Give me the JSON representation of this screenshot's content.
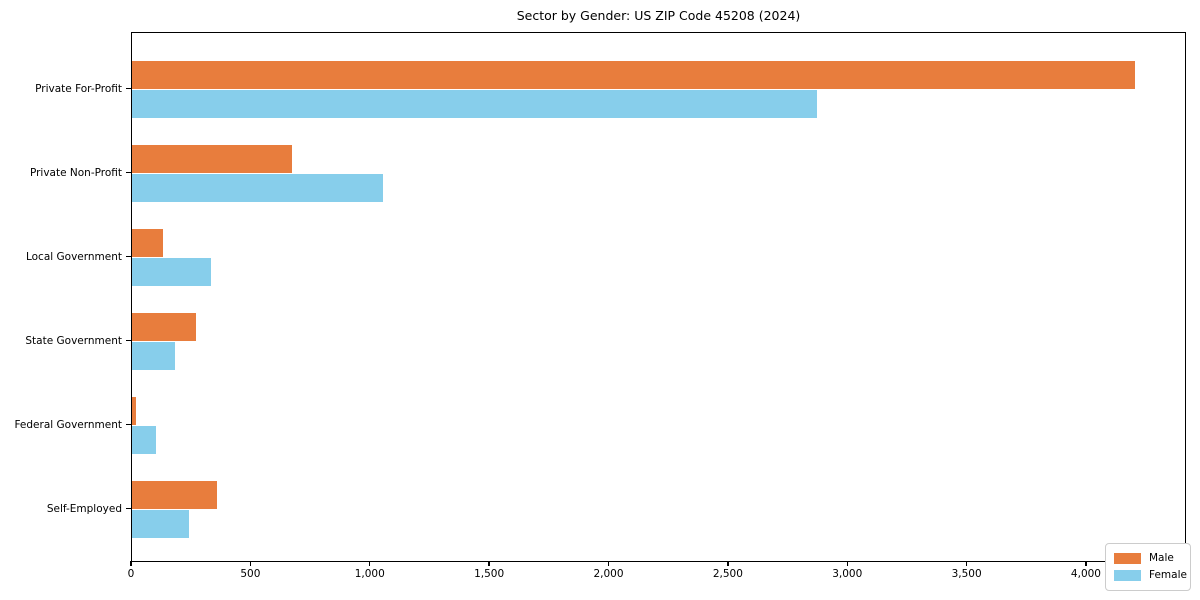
{
  "chart_data": {
    "type": "bar",
    "orientation": "horizontal",
    "title": "Sector by Gender: US ZIP Code 45208 (2024)",
    "categories": [
      "Private For-Profit",
      "Private Non-Profit",
      "Local Government",
      "State Government",
      "Federal Government",
      "Self-Employed"
    ],
    "series": [
      {
        "name": "Male",
        "color": "#e87d3d",
        "values": [
          4200,
          670,
          130,
          270,
          15,
          355
        ]
      },
      {
        "name": "Female",
        "color": "#87ceeb",
        "values": [
          2870,
          1050,
          330,
          180,
          100,
          240
        ]
      }
    ],
    "xlabel": "",
    "ylabel": "",
    "xlim": [
      0,
      4419
    ],
    "xticks": [
      0,
      500,
      1000,
      1500,
      2000,
      2500,
      3000,
      3500,
      4000
    ],
    "xticklabels": [
      "0",
      "500",
      "1,000",
      "1,500",
      "2,000",
      "2,500",
      "3,000",
      "3,500",
      "4,000"
    ],
    "grid": false,
    "legend_position": "lower right",
    "spine_color": "#000000",
    "background_color": "#ffffff"
  }
}
